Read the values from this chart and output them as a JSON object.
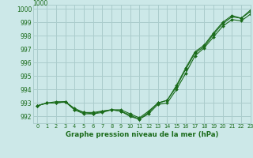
{
  "title": "Graphe pression niveau de la mer (hPa)",
  "background_color": "#cce8e8",
  "grid_color": "#aacccc",
  "line_color": "#1a6b1a",
  "xlim": [
    -0.5,
    23
  ],
  "ylim": [
    991.5,
    1000.3
  ],
  "xticks": [
    0,
    1,
    2,
    3,
    4,
    5,
    6,
    7,
    8,
    9,
    10,
    11,
    12,
    13,
    14,
    15,
    16,
    17,
    18,
    19,
    20,
    21,
    22,
    23
  ],
  "yticks": [
    992,
    993,
    994,
    995,
    996,
    997,
    998,
    999,
    1000
  ],
  "ylabel_extra": "1000",
  "series1": [
    992.8,
    993.0,
    993.0,
    993.1,
    992.5,
    992.2,
    992.2,
    992.3,
    992.5,
    992.4,
    992.0,
    991.8,
    992.2,
    992.9,
    993.0,
    994.0,
    995.2,
    996.5,
    997.1,
    997.9,
    998.7,
    999.2,
    999.1,
    999.6
  ],
  "series2": [
    992.8,
    993.0,
    993.0,
    993.1,
    992.6,
    992.3,
    992.2,
    992.4,
    992.5,
    992.4,
    992.1,
    991.8,
    992.3,
    993.0,
    993.2,
    994.3,
    995.6,
    996.8,
    997.3,
    998.2,
    999.0,
    999.5,
    999.3,
    999.9
  ],
  "series3": [
    992.8,
    993.0,
    993.1,
    993.1,
    992.5,
    992.3,
    992.3,
    992.4,
    992.5,
    992.5,
    992.2,
    991.9,
    992.4,
    993.0,
    993.2,
    994.2,
    995.5,
    996.7,
    997.2,
    998.1,
    998.9,
    999.4,
    999.3,
    999.8
  ],
  "font_size_x": 4.8,
  "font_size_y": 5.5,
  "font_size_title": 6.2
}
